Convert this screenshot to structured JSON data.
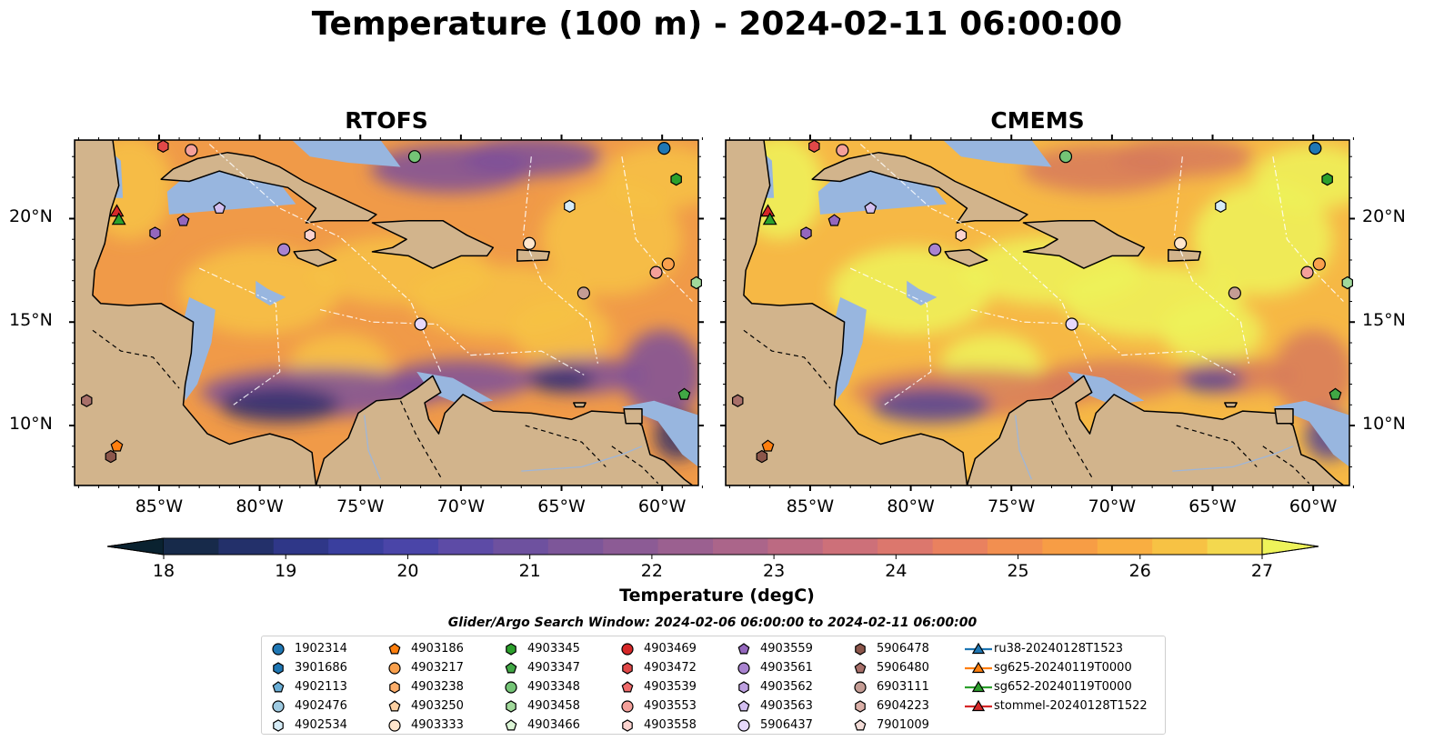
{
  "title": "Temperature (100 m) - 2024-02-11 06:00:00",
  "panels": [
    {
      "id": "rtofs",
      "title": "RTOFS"
    },
    {
      "id": "cmems",
      "title": "CMEMS"
    }
  ],
  "lon_ticks": [
    "85°W",
    "80°W",
    "75°W",
    "70°W",
    "65°W",
    "60°W"
  ],
  "lat_ticks": [
    "20°N",
    "15°N",
    "10°N"
  ],
  "colorbar": {
    "label": "Temperature (degC)",
    "min": 18,
    "max": 27,
    "step": 0.5,
    "ticks": [
      "18",
      "19",
      "20",
      "21",
      "22",
      "23",
      "24",
      "25",
      "26",
      "27"
    ],
    "extend": "both",
    "colors": [
      "#0a2230",
      "#172a4a",
      "#23306a",
      "#2f3788",
      "#3a3f9e",
      "#4a45a8",
      "#5d4ba6",
      "#6e519f",
      "#7d5699",
      "#8c5b95",
      "#9b6090",
      "#ab658a",
      "#bc6a82",
      "#cd7079",
      "#dc776d",
      "#e9815f",
      "#f28f50",
      "#f79d45",
      "#f9ae41",
      "#f7c244",
      "#f3d84e",
      "#eef35a"
    ]
  },
  "search_window": "Glider/Argo Search Window: 2024-02-06 06:00:00 to 2024-02-11 06:00:00",
  "legend": [
    {
      "label": "1902314",
      "marker": "circle",
      "color": "#1f77b4"
    },
    {
      "label": "3901686",
      "marker": "hexagon",
      "color": "#1f77b4"
    },
    {
      "label": "4902113",
      "marker": "pentagon",
      "color": "#6aaed6"
    },
    {
      "label": "4902476",
      "marker": "circle",
      "color": "#9ecae1"
    },
    {
      "label": "4902534",
      "marker": "hexagon",
      "color": "#d6ecf7"
    },
    {
      "label": "4903186",
      "marker": "pentagon",
      "color": "#ff7f0e"
    },
    {
      "label": "4903217",
      "marker": "circle",
      "color": "#f9a04d"
    },
    {
      "label": "4903238",
      "marker": "hexagon",
      "color": "#fdae6b"
    },
    {
      "label": "4903250",
      "marker": "pentagon",
      "color": "#fdd0a2"
    },
    {
      "label": "4903333",
      "marker": "circle",
      "color": "#ffe6cc"
    },
    {
      "label": "4903345",
      "marker": "hexagon",
      "color": "#2ca02c"
    },
    {
      "label": "4903347",
      "marker": "pentagon",
      "color": "#41a845"
    },
    {
      "label": "4903348",
      "marker": "circle",
      "color": "#74c476"
    },
    {
      "label": "4903458",
      "marker": "hexagon",
      "color": "#a1d99b"
    },
    {
      "label": "4903466",
      "marker": "pentagon",
      "color": "#dcf5d6"
    },
    {
      "label": "4903469",
      "marker": "circle",
      "color": "#d62728"
    },
    {
      "label": "4903472",
      "marker": "hexagon",
      "color": "#e04848"
    },
    {
      "label": "4903539",
      "marker": "pentagon",
      "color": "#ef6b6b"
    },
    {
      "label": "4903553",
      "marker": "circle",
      "color": "#f4a09a"
    },
    {
      "label": "4903558",
      "marker": "hexagon",
      "color": "#fcd3cf"
    },
    {
      "label": "4903559",
      "marker": "pentagon",
      "color": "#9467bd"
    },
    {
      "label": "4903561",
      "marker": "circle",
      "color": "#a983d0"
    },
    {
      "label": "4903562",
      "marker": "hexagon",
      "color": "#bda0e0"
    },
    {
      "label": "4903563",
      "marker": "pentagon",
      "color": "#d3bff0"
    },
    {
      "label": "5906437",
      "marker": "circle",
      "color": "#e6d8fb"
    },
    {
      "label": "5906478",
      "marker": "hexagon",
      "color": "#8c564b"
    },
    {
      "label": "5906480",
      "marker": "pentagon",
      "color": "#a8706a"
    },
    {
      "label": "6903111",
      "marker": "circle",
      "color": "#c49c94"
    },
    {
      "label": "6904223",
      "marker": "hexagon",
      "color": "#dbb0a8"
    },
    {
      "label": "7901009",
      "marker": "pentagon",
      "color": "#f3dcd7"
    },
    {
      "label": "ru38-20240128T1523",
      "marker": "triangle-line",
      "color": "#1f77b4"
    },
    {
      "label": "sg625-20240119T0000",
      "marker": "triangle-line",
      "color": "#ff7f0e"
    },
    {
      "label": "sg652-20240119T0000",
      "marker": "triangle-line",
      "color": "#2ca02c"
    },
    {
      "label": "stommel-20240128T1522",
      "marker": "triangle-line",
      "color": "#d62728"
    }
  ],
  "map_colors": {
    "land": "#d2b48c",
    "shelf": "#98b6df",
    "pacific_deep": "#0e2535",
    "coast": "#000000"
  },
  "field_colors": {
    "rtofs": {
      "base": "#f09a48",
      "warm": "#f7c244",
      "cool": "#7c4f9a",
      "cold": "#2c2d6c"
    },
    "cmems": {
      "base": "#f6b845",
      "warm": "#eef35a",
      "cool": "#d77a5c",
      "cold": "#4a3f98"
    }
  }
}
